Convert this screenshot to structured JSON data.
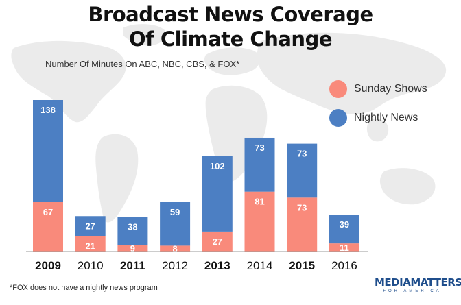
{
  "header": {
    "title_line_1": "Broadcast News Coverage",
    "title_line_2": "Of Climate Change",
    "subtitle": "Number Of Minutes On ABC, NBC, CBS, & FOX*"
  },
  "legend": {
    "placement": "right",
    "items": [
      {
        "label": "Sunday Shows",
        "color": "#f98a7b"
      },
      {
        "label": "Nightly News",
        "color": "#4c7fc3"
      }
    ]
  },
  "footnote": "*FOX does not have a nightly news program",
  "logo": {
    "main": "MEDIAMATTERS",
    "sub": "FOR AMERICA"
  },
  "chart_data": {
    "type": "bar",
    "stacked": true,
    "title": "Broadcast News Coverage Of Climate Change",
    "subtitle": "Number Of Minutes On ABC, NBC, CBS, & FOX*",
    "categories": [
      "2009",
      "2010",
      "2011",
      "2012",
      "2013",
      "2014",
      "2015",
      "2016"
    ],
    "bold_categories": [
      "2009",
      "2011",
      "2013",
      "2015"
    ],
    "series": [
      {
        "name": "Sunday Shows",
        "color": "#f98a7b",
        "values": [
          67,
          21,
          9,
          8,
          27,
          81,
          73,
          11
        ]
      },
      {
        "name": "Nightly News",
        "color": "#4c7fc3",
        "values": [
          138,
          27,
          38,
          59,
          102,
          73,
          73,
          39
        ]
      }
    ],
    "ylim": [
      0,
      205
    ],
    "grid": false,
    "legend_position": "right"
  }
}
